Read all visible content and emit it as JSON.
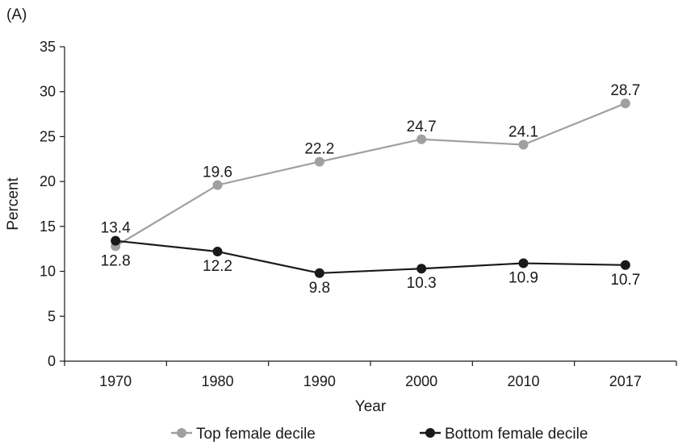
{
  "chart_data": {
    "type": "line",
    "panel_label": "(A)",
    "xlabel": "Year",
    "ylabel": "Percent",
    "categories": [
      "1970",
      "1980",
      "1990",
      "2000",
      "2010",
      "2017"
    ],
    "ylim": [
      0,
      35
    ],
    "yticks": [
      "0",
      "5",
      "10",
      "15",
      "20",
      "25",
      "30",
      "35"
    ],
    "grid": false,
    "legend_position": "bottom",
    "series": [
      {
        "name": "Top female decile",
        "color": "#a0a0a0",
        "values": [
          12.8,
          19.6,
          22.2,
          24.7,
          24.1,
          28.7
        ],
        "labels": [
          "12.8",
          "19.6",
          "22.2",
          "24.7",
          "24.1",
          "28.7"
        ]
      },
      {
        "name": "Bottom female decile",
        "color": "#1a1a1a",
        "values": [
          13.4,
          12.2,
          9.8,
          10.3,
          10.9,
          10.7
        ],
        "labels": [
          "13.4",
          "12.2",
          "9.8",
          "10.3",
          "10.9",
          "10.7"
        ]
      }
    ]
  }
}
